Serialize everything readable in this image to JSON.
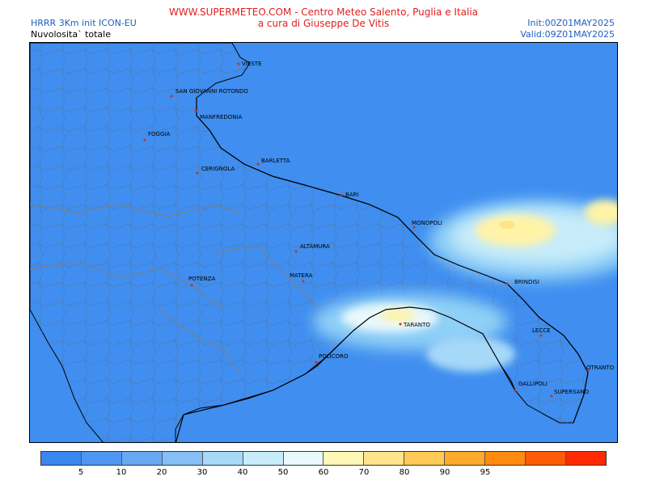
{
  "header": {
    "left_line1": "HRRR 3Km init ICON-EU",
    "left_line2": "Nuvolosita` totale",
    "center_line1": "WWW.SUPERMETEO.COM - Centro Meteo Salento, Puglia e Italia",
    "center_line2": "a cura di Giuseppe De Vitis",
    "right_line1": "Init:00Z01MAY2025",
    "right_line2": "Valid:09Z01MAY2025"
  },
  "cities": [
    {
      "name": "VIESTE"
    },
    {
      "name": "SAN GIOVANNI ROTONDO"
    },
    {
      "name": "MANFREDONIA"
    },
    {
      "name": "FOGGIA"
    },
    {
      "name": "BARLETTA"
    },
    {
      "name": "CERIGNOLA"
    },
    {
      "name": "BARI"
    },
    {
      "name": "MONOPOLI"
    },
    {
      "name": "ALTAMURA"
    },
    {
      "name": "MATERA"
    },
    {
      "name": "POTENZA"
    },
    {
      "name": "BRINDISI"
    },
    {
      "name": "TARANTO"
    },
    {
      "name": "LECCE"
    },
    {
      "name": "POLICORO"
    },
    {
      "name": "OTRANTO"
    },
    {
      "name": "GALLIPOLI"
    },
    {
      "name": "SUPERSANO"
    }
  ],
  "legend": {
    "colors": [
      "#3a86ef",
      "#4d97f2",
      "#66a9f3",
      "#85bff6",
      "#a6d8f8",
      "#c8ecf9",
      "#e8f8fb",
      "#fff7b6",
      "#ffe48a",
      "#ffca55",
      "#ffaa2a",
      "#ff8a10",
      "#ff5a08",
      "#ff2a00"
    ],
    "labels": [
      "5",
      "10",
      "20",
      "30",
      "40",
      "50",
      "60",
      "70",
      "80",
      "90",
      "95"
    ]
  },
  "colors": {
    "sea_and_land_base": "#3f8ef0",
    "title_red": "#e02020",
    "info_blue": "#1f5fbf"
  }
}
